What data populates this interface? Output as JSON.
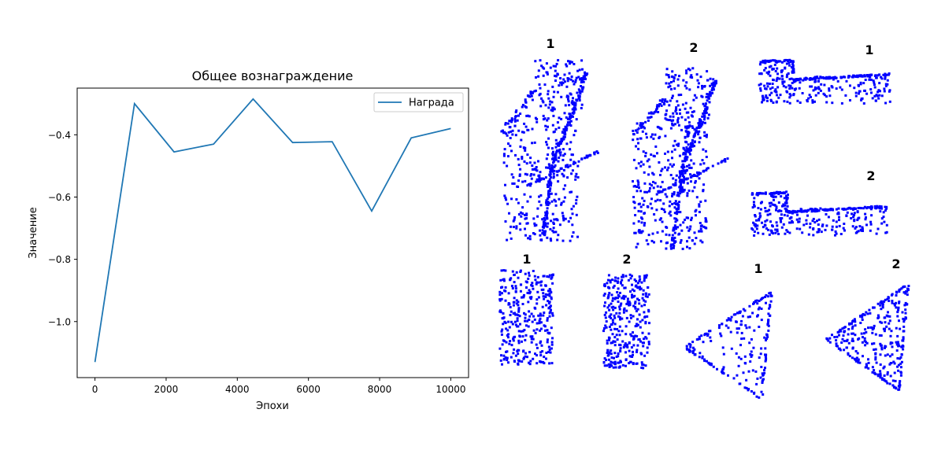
{
  "chart_data": [
    {
      "type": "line",
      "title": "Общее вознаграждение",
      "xlabel": "Эпохи",
      "ylabel": "Значение",
      "xlim": [
        -500,
        10500
      ],
      "ylim": [
        -1.18,
        -0.25
      ],
      "x_ticks": [
        0,
        2000,
        4000,
        6000,
        8000,
        10000
      ],
      "y_ticks": [
        -1.0,
        -0.8,
        -0.6,
        -0.4
      ],
      "x_tick_labels": [
        "0",
        "2000",
        "4000",
        "6000",
        "8000",
        "10000"
      ],
      "y_tick_labels": [
        "−1.0",
        "−0.8",
        "−0.6",
        "−0.4"
      ],
      "grid": false,
      "legend_position": "top-right",
      "series": [
        {
          "name": "Награда",
          "color": "#1f77b4",
          "x": [
            0,
            1111,
            2222,
            3333,
            4444,
            5556,
            6667,
            7778,
            8889,
            10000
          ],
          "y": [
            -1.13,
            -0.3,
            -0.455,
            -0.43,
            -0.285,
            -0.425,
            -0.422,
            -0.645,
            -0.41,
            -0.38
          ]
        }
      ]
    },
    {
      "type": "scatter",
      "point_color": "#0000ff",
      "panels": [
        {
          "label": "1",
          "shape": "leaning-arch"
        },
        {
          "label": "2",
          "shape": "leaning-arch"
        },
        {
          "label": "1",
          "shape": "l-step"
        },
        {
          "label": "2",
          "shape": "l-step"
        },
        {
          "label": "1",
          "shape": "column"
        },
        {
          "label": "2",
          "shape": "column"
        },
        {
          "label": "1",
          "shape": "triangle"
        },
        {
          "label": "2",
          "shape": "triangle"
        }
      ]
    }
  ]
}
